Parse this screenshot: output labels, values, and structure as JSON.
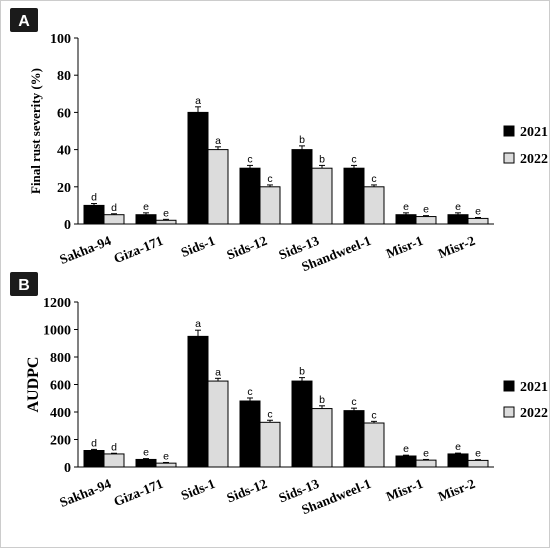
{
  "chart_data": [
    {
      "panel_label": "A",
      "type": "bar",
      "ylabel": "Final rust severity (%)",
      "ylim": [
        0,
        100
      ],
      "yticks": [
        0,
        20,
        40,
        60,
        80,
        100
      ],
      "categories": [
        "Sakha-94",
        "Giza-171",
        "Sids-1",
        "Sids-12",
        "Sids-13",
        "Shandweel-1",
        "Misr-1",
        "Misr-2"
      ],
      "series": [
        {
          "name": "2021",
          "color": "#000000",
          "values": [
            10,
            5,
            60,
            30,
            40,
            30,
            5,
            5
          ],
          "errors": [
            1,
            1,
            3,
            1.5,
            2,
            1.5,
            1,
            1
          ],
          "letters": [
            "d",
            "e",
            "a",
            "c",
            "b",
            "c",
            "e",
            "e"
          ]
        },
        {
          "name": "2022",
          "color": "#dcdcdc",
          "values": [
            5,
            2,
            40,
            20,
            30,
            20,
            4,
            3
          ],
          "errors": [
            0.5,
            0.5,
            1.5,
            1,
            1.5,
            1,
            0.5,
            0.5
          ],
          "letters": [
            "d",
            "e",
            "a",
            "c",
            "b",
            "c",
            "e",
            "e"
          ]
        }
      ],
      "legend_position": "right"
    },
    {
      "panel_label": "B",
      "type": "bar",
      "ylabel": "AUDPC",
      "ylim": [
        0,
        1200
      ],
      "yticks": [
        0,
        200,
        400,
        600,
        800,
        1000,
        1200
      ],
      "categories": [
        "Sakha-94",
        "Giza-171",
        "Sids-1",
        "Sids-12",
        "Sids-13",
        "Shandweel-1",
        "Misr-1",
        "Misr-2"
      ],
      "series": [
        {
          "name": "2021",
          "color": "#000000",
          "values": [
            120,
            55,
            950,
            480,
            625,
            410,
            80,
            95
          ],
          "errors": [
            8,
            6,
            45,
            22,
            25,
            18,
            6,
            6
          ],
          "letters": [
            "d",
            "e",
            "a",
            "c",
            "b",
            "c",
            "e",
            "e"
          ]
        },
        {
          "name": "2022",
          "color": "#dcdcdc",
          "values": [
            95,
            28,
            625,
            325,
            425,
            320,
            50,
            48
          ],
          "errors": [
            5,
            5,
            20,
            15,
            20,
            12,
            5,
            5
          ],
          "letters": [
            "d",
            "e",
            "a",
            "c",
            "b",
            "c",
            "e",
            "e"
          ]
        }
      ],
      "legend_position": "right"
    }
  ]
}
